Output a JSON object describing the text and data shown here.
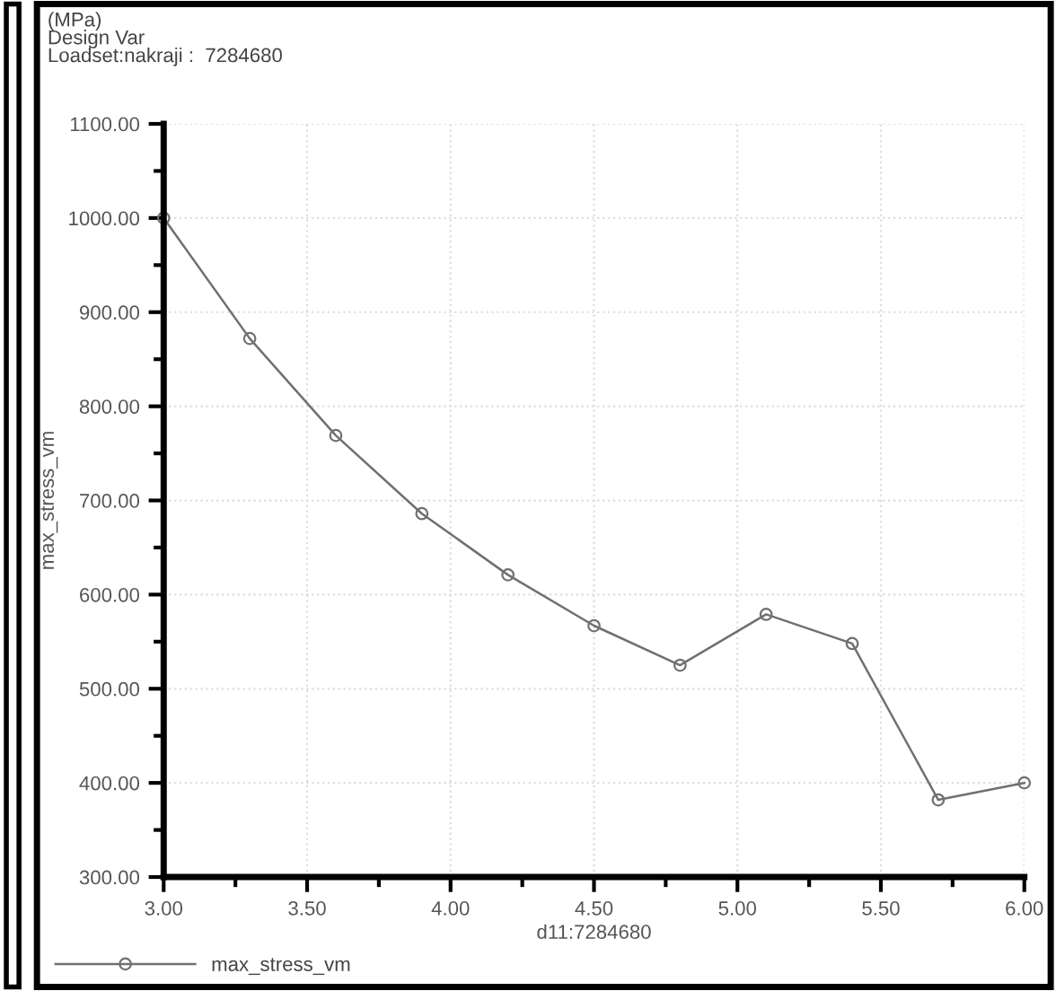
{
  "chart_data": {
    "type": "line",
    "annotations": [
      "(MPa)",
      "Design Var",
      "Loadset:nakraji :  7284680"
    ],
    "xlabel": "d11:7284680",
    "ylabel": "max_stress_vm",
    "x": [
      3.0,
      3.3,
      3.6,
      3.9,
      4.2,
      4.5,
      4.8,
      5.1,
      5.4,
      5.7,
      6.0
    ],
    "series": [
      {
        "name": "max_stress_vm",
        "color": "#707070",
        "values": [
          1000,
          872,
          769,
          686,
          621,
          567,
          525,
          579,
          548,
          382,
          400
        ]
      }
    ],
    "xlim": [
      3.0,
      6.0
    ],
    "xticks": [
      {
        "value": 3.0,
        "label": "3.00"
      },
      {
        "value": 3.5,
        "label": "3.50"
      },
      {
        "value": 4.0,
        "label": "4.00"
      },
      {
        "value": 4.5,
        "label": "4.50"
      },
      {
        "value": 5.0,
        "label": "5.00"
      },
      {
        "value": 5.5,
        "label": "5.50"
      },
      {
        "value": 6.0,
        "label": "6.00"
      }
    ],
    "ylim": [
      300,
      1100
    ],
    "yticks": [
      {
        "value": 300,
        "label": "300.00"
      },
      {
        "value": 400,
        "label": "400.00"
      },
      {
        "value": 500,
        "label": "500.00"
      },
      {
        "value": 600,
        "label": "600.00"
      },
      {
        "value": 700,
        "label": "700.00"
      },
      {
        "value": 800,
        "label": "800.00"
      },
      {
        "value": 900,
        "label": "900.00"
      },
      {
        "value": 1000,
        "label": "1000.00"
      },
      {
        "value": 1100,
        "label": "1100.00"
      }
    ],
    "grid": true,
    "legend": "bottom left",
    "marker": "circle",
    "line_style": "solid"
  }
}
